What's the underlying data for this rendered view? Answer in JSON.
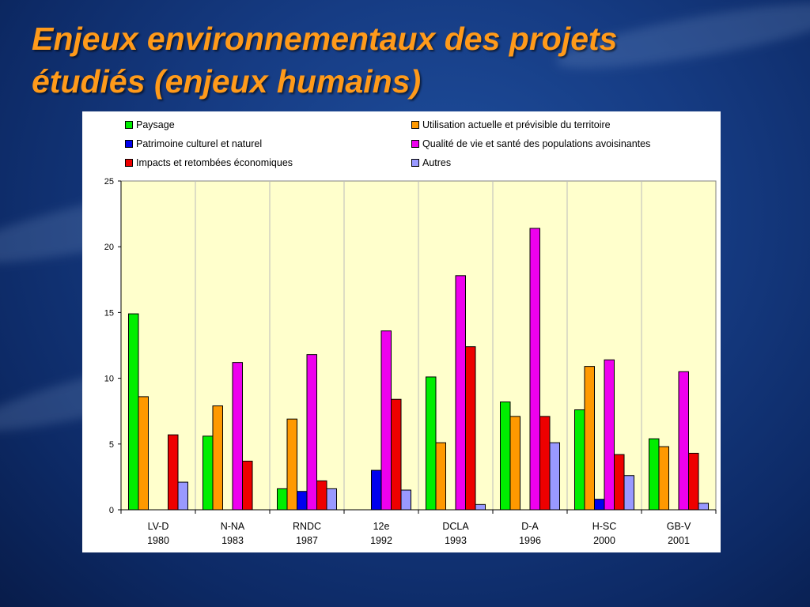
{
  "slide": {
    "title_line1": "Enjeux environnementaux des projets",
    "title_line2": "étudiés (enjeux humains)"
  },
  "chart_data": {
    "type": "bar",
    "categories": [
      {
        "name": "LV-D",
        "year": "1980"
      },
      {
        "name": "N-NA",
        "year": "1983"
      },
      {
        "name": "RNDC",
        "year": "1987"
      },
      {
        "name": "12e",
        "year": "1992"
      },
      {
        "name": "DCLA",
        "year": "1993"
      },
      {
        "name": "D-A",
        "year": "1996"
      },
      {
        "name": "H-SC",
        "year": "2000"
      },
      {
        "name": "GB-V",
        "year": "2001"
      }
    ],
    "series": [
      {
        "name": "Paysage",
        "color": "#00ee00",
        "values": [
          14.9,
          5.6,
          1.6,
          0,
          10.1,
          8.2,
          7.6,
          5.4
        ]
      },
      {
        "name": "Utilisation actuelle et prévisible du territoire",
        "color": "#ff9900",
        "values": [
          8.6,
          7.9,
          6.9,
          0,
          5.1,
          7.1,
          10.9,
          4.8
        ]
      },
      {
        "name": "Patrimoine culturel et naturel",
        "color": "#0000ee",
        "values": [
          0,
          0,
          1.4,
          3.0,
          0,
          0,
          0.8,
          0
        ]
      },
      {
        "name": "Qualité de vie et santé des populations avoisinantes",
        "color": "#ee00ee",
        "values": [
          0,
          11.2,
          11.8,
          13.6,
          17.8,
          21.4,
          11.4,
          10.5
        ]
      },
      {
        "name": "Impacts et retombées économiques",
        "color": "#ee0000",
        "values": [
          5.7,
          3.7,
          2.2,
          8.4,
          12.4,
          7.1,
          4.2,
          4.3
        ]
      },
      {
        "name": "Autres",
        "color": "#9999ff",
        "values": [
          2.1,
          0,
          1.6,
          1.5,
          0.4,
          5.1,
          2.6,
          0.5
        ]
      }
    ],
    "ylim": [
      0,
      25
    ],
    "yticks": [
      "0",
      "5",
      "10",
      "15",
      "20",
      "25"
    ],
    "plot_background": "#ffffcc",
    "legend_position": "top",
    "grid": false,
    "category_separators": true
  }
}
